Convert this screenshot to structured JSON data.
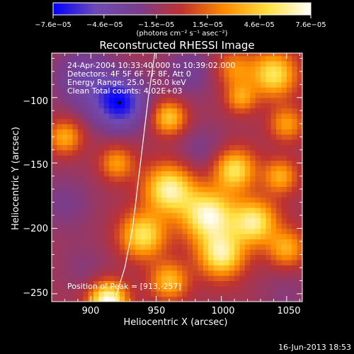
{
  "colorbar": {
    "tick_labels": [
      "−7.6e−05",
      "−4.6e−05",
      "−1.5e−05",
      "1.5e−05",
      "4.6e−05",
      "7.6e−05"
    ],
    "unit_label": "(photons cm⁻² s⁻¹ asec⁻²)"
  },
  "plot": {
    "title": "Reconstructed RHESSI Image",
    "info_lines": [
      "24-Apr-2004 10:33:40.000 to 10:39:02.000",
      "Detectors: 4F 5F 6F 7F 8F, Att 0",
      "Energy Range: 25.0 - 50.0 keV",
      "Clean     Total counts: 4.02E+03"
    ],
    "peak_text": "Position of Peak = [913,-257]",
    "xlabel": "Heliocentric X (arcsec)",
    "ylabel": "Heliocentric Y (arcsec)",
    "x_ticks": [
      "900",
      "950",
      "1000",
      "1050"
    ],
    "y_ticks": [
      "−100",
      "−150",
      "−200",
      "−250"
    ]
  },
  "footer": {
    "timestamp": "16-Jun-2013 18:53"
  },
  "chart_data": {
    "type": "heatmap",
    "title": "Reconstructed RHESSI Image",
    "xlabel": "Heliocentric X (arcsec)",
    "ylabel": "Heliocentric Y (arcsec)",
    "xlim": [
      870,
      1062
    ],
    "ylim": [
      -256,
      -66
    ],
    "colorbar": {
      "min": -7.6e-05,
      "max": 7.6e-05,
      "ticks": [
        -7.6e-05,
        -4.6e-05,
        -1.5e-05,
        1.5e-05,
        4.6e-05,
        7.6e-05
      ],
      "label": "(photons cm⁻² s⁻¹ asec⁻²)",
      "colors": [
        "#0000ff",
        "#6e4bb4",
        "#7a3c8c",
        "#c0322e",
        "#ff8c00",
        "#ffe040",
        "#ffffff"
      ]
    },
    "grid": false,
    "peak": [
      913,
      -257
    ],
    "limb_curve": [
      [
        949,
        -66
      ],
      [
        944,
        -100
      ],
      [
        938,
        -150
      ],
      [
        932,
        -200
      ],
      [
        926,
        -230
      ],
      [
        918,
        -256
      ]
    ],
    "marker": [
      922,
      -104
    ],
    "sources": [
      {
        "x": 922,
        "y": -104,
        "v": -7.2e-05,
        "s": 14
      },
      {
        "x": 895,
        "y": -85,
        "v": -4e-05,
        "s": 16
      },
      {
        "x": 975,
        "y": -80,
        "v": -3e-05,
        "s": 14
      },
      {
        "x": 1010,
        "y": -78,
        "v": 2.5e-05,
        "s": 10
      },
      {
        "x": 1040,
        "y": -82,
        "v": 5.5e-05,
        "s": 12
      },
      {
        "x": 1015,
        "y": -100,
        "v": 3e-05,
        "s": 8
      },
      {
        "x": 960,
        "y": -115,
        "v": 4.5e-05,
        "s": 9
      },
      {
        "x": 1050,
        "y": -120,
        "v": 3e-05,
        "s": 9
      },
      {
        "x": 880,
        "y": -130,
        "v": 3.5e-05,
        "s": 9
      },
      {
        "x": 985,
        "y": -140,
        "v": -2.5e-05,
        "s": 14
      },
      {
        "x": 920,
        "y": -150,
        "v": 3e-05,
        "s": 9
      },
      {
        "x": 1010,
        "y": -155,
        "v": 5.5e-05,
        "s": 11
      },
      {
        "x": 1045,
        "y": -160,
        "v": 3.5e-05,
        "s": 9
      },
      {
        "x": 960,
        "y": -170,
        "v": 6.5e-05,
        "s": 13
      },
      {
        "x": 990,
        "y": -190,
        "v": 7e-05,
        "s": 14
      },
      {
        "x": 1025,
        "y": -195,
        "v": 6e-05,
        "s": 12
      },
      {
        "x": 940,
        "y": -205,
        "v": 5.5e-05,
        "s": 12
      },
      {
        "x": 1000,
        "y": -220,
        "v": 6e-05,
        "s": 12
      },
      {
        "x": 1050,
        "y": -215,
        "v": 3.5e-05,
        "s": 10
      },
      {
        "x": 880,
        "y": -180,
        "v": -2.5e-05,
        "s": 16
      },
      {
        "x": 895,
        "y": -230,
        "v": -2e-05,
        "s": 14
      },
      {
        "x": 960,
        "y": -240,
        "v": 4e-05,
        "s": 10
      },
      {
        "x": 913,
        "y": -255,
        "v": 7.6e-05,
        "s": 10
      },
      {
        "x": 1050,
        "y": -250,
        "v": -2e-05,
        "s": 14
      }
    ]
  }
}
